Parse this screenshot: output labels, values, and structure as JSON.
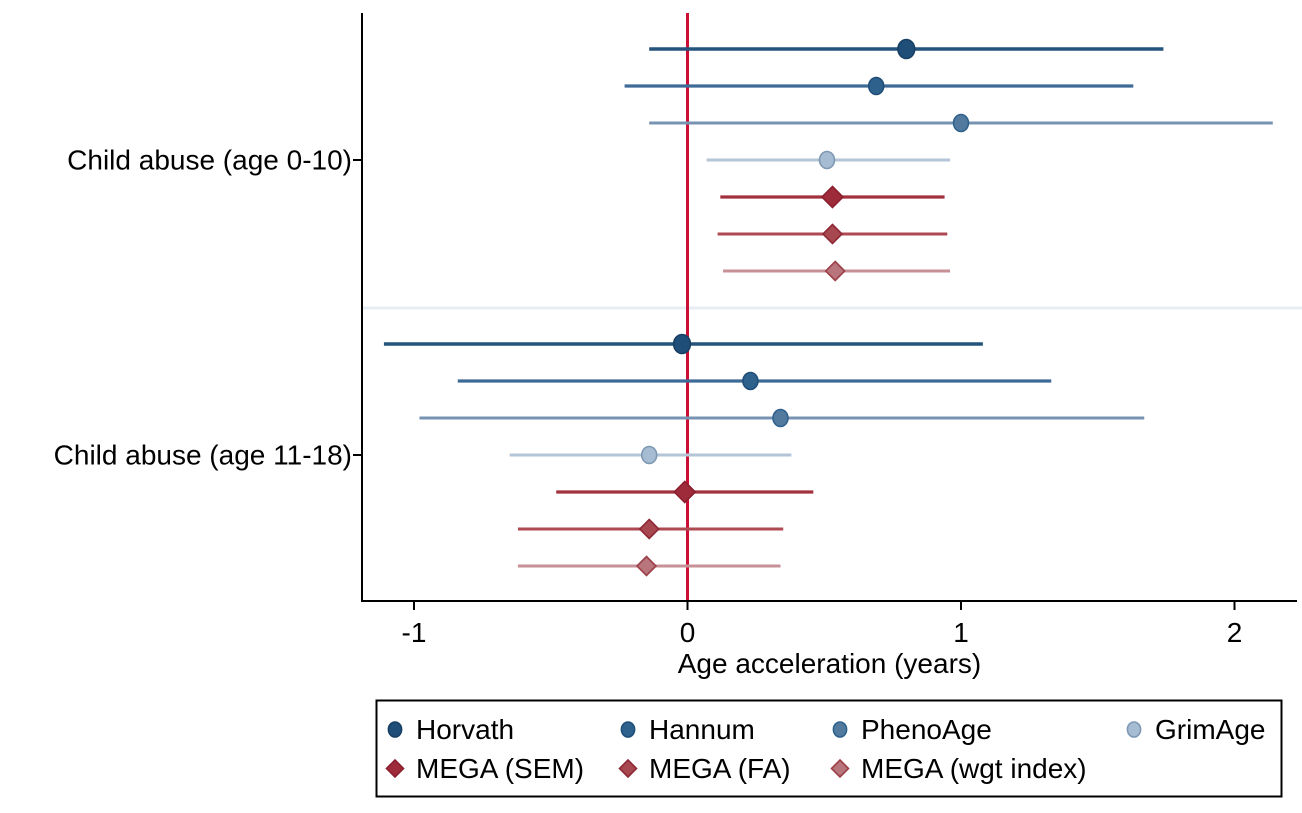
{
  "figure": {
    "background": "#ffffff"
  },
  "chart_data": {
    "type": "scatter",
    "subtype": "forest-plot",
    "title": "",
    "xlabel": "Age acceleration (years)",
    "ylabel": "",
    "xlim": [
      -1.19,
      2.25
    ],
    "x_ticks": [
      -1,
      0,
      1,
      2
    ],
    "x_tick_labels": [
      "-1",
      "0",
      "1",
      "2"
    ],
    "grid": false,
    "reference_line": {
      "x": 0,
      "color": "#cb0f34"
    },
    "axis_color": "#000000",
    "separator_color": "#e7eef3",
    "clocks": [
      {
        "name": "Horvath",
        "marker": "circle",
        "fill": "#1f4e79",
        "stroke": "#173f63",
        "line_color": "#24537c",
        "line_width": 3.6,
        "size": 9.5
      },
      {
        "name": "Hannum",
        "marker": "circle",
        "fill": "#2f618d",
        "stroke": "#1f4e79",
        "line_color": "#3d6b96",
        "line_width": 3.2,
        "size": 8.5
      },
      {
        "name": "PhenoAge",
        "marker": "circle",
        "fill": "#527a9f",
        "stroke": "#2f618d",
        "line_color": "#7694b2",
        "line_width": 3.0,
        "size": 8.5
      },
      {
        "name": "GrimAge",
        "marker": "circle",
        "fill": "#a6bcd2",
        "stroke": "#7e98b4",
        "line_color": "#b3c5d7",
        "line_width": 3.0,
        "size": 8.5
      },
      {
        "name": "MEGA (SEM)",
        "marker": "diamond",
        "fill": "#9e2b3a",
        "stroke": "#8c1f2e",
        "line_color": "#a2303f",
        "line_width": 3.2,
        "size": 10.5
      },
      {
        "name": "MEGA (FA)",
        "marker": "diamond",
        "fill": "#a74850",
        "stroke": "#8f2836",
        "line_color": "#ad4a52",
        "line_width": 3.0,
        "size": 9.5
      },
      {
        "name": "MEGA (wgt index)",
        "marker": "diamond",
        "fill": "#b8757c",
        "stroke": "#9c3f48",
        "line_color": "#c69096",
        "line_width": 3.0,
        "size": 9.5
      }
    ],
    "groups": [
      {
        "label": "Child abuse (age 0-10)",
        "estimates": [
          {
            "clock": "Horvath",
            "value": 0.8,
            "ci_low": -0.14,
            "ci_high": 1.74
          },
          {
            "clock": "Hannum",
            "value": 0.69,
            "ci_low": -0.23,
            "ci_high": 1.63
          },
          {
            "clock": "PhenoAge",
            "value": 1.0,
            "ci_low": -0.14,
            "ci_high": 2.14
          },
          {
            "clock": "GrimAge",
            "value": 0.51,
            "ci_low": 0.07,
            "ci_high": 0.96
          },
          {
            "clock": "MEGA (SEM)",
            "value": 0.53,
            "ci_low": 0.12,
            "ci_high": 0.94
          },
          {
            "clock": "MEGA (FA)",
            "value": 0.53,
            "ci_low": 0.11,
            "ci_high": 0.95
          },
          {
            "clock": "MEGA (wgt index)",
            "value": 0.54,
            "ci_low": 0.13,
            "ci_high": 0.96
          }
        ]
      },
      {
        "label": "Child abuse (age 11-18)",
        "estimates": [
          {
            "clock": "Horvath",
            "value": -0.02,
            "ci_low": -1.11,
            "ci_high": 1.08
          },
          {
            "clock": "Hannum",
            "value": 0.23,
            "ci_low": -0.84,
            "ci_high": 1.33
          },
          {
            "clock": "PhenoAge",
            "value": 0.34,
            "ci_low": -0.98,
            "ci_high": 1.67
          },
          {
            "clock": "GrimAge",
            "value": -0.14,
            "ci_low": -0.65,
            "ci_high": 0.38
          },
          {
            "clock": "MEGA (SEM)",
            "value": -0.01,
            "ci_low": -0.48,
            "ci_high": 0.46
          },
          {
            "clock": "MEGA (FA)",
            "value": -0.14,
            "ci_low": -0.62,
            "ci_high": 0.35
          },
          {
            "clock": "MEGA (wgt index)",
            "value": -0.15,
            "ci_low": -0.62,
            "ci_high": 0.34
          }
        ]
      }
    ],
    "legend": {
      "position": "bottom",
      "border_color": "#000000",
      "background": "#ffffff",
      "rows": [
        [
          "Horvath",
          "Hannum",
          "PhenoAge",
          "GrimAge"
        ],
        [
          "MEGA (SEM)",
          "MEGA (FA)",
          "MEGA (wgt index)"
        ]
      ]
    }
  }
}
